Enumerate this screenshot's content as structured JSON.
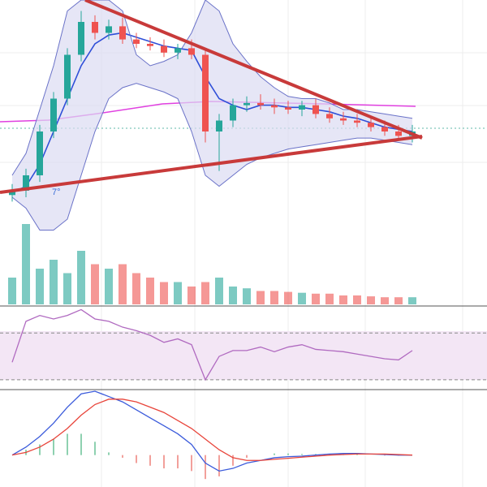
{
  "charts": [
    {
      "type": "candlestick",
      "annotations": [
        "7°"
      ],
      "ylim": [
        0,
        100
      ],
      "up_color": "#26a69a",
      "down_color": "#ef5350",
      "open": [
        11,
        13,
        20,
        40,
        55,
        75,
        90,
        85,
        88,
        82,
        80,
        79,
        76,
        78,
        75,
        40,
        45,
        52,
        53,
        52,
        51,
        50,
        52,
        48,
        46,
        45,
        44,
        42,
        40,
        38
      ],
      "high": [
        16,
        23,
        43,
        58,
        78,
        95,
        93,
        91,
        92,
        85,
        83,
        82,
        80,
        82,
        78,
        48,
        55,
        56,
        57,
        55,
        54,
        54,
        55,
        51,
        49,
        48,
        46,
        45,
        43,
        43
      ],
      "low": [
        8,
        10,
        17,
        37,
        52,
        72,
        82,
        82,
        80,
        78,
        77,
        74,
        73,
        73,
        35,
        22,
        42,
        49,
        50,
        48,
        48,
        47,
        46,
        44,
        43,
        42,
        40,
        38,
        36,
        35
      ],
      "close": [
        13,
        20,
        40,
        55,
        75,
        90,
        85,
        88,
        82,
        80,
        79,
        76,
        78,
        75,
        40,
        45,
        52,
        53,
        52,
        51,
        50,
        52,
        48,
        46,
        45,
        44,
        42,
        40,
        38,
        40
      ],
      "overlays": [
        {
          "color": "#2f4fd8",
          "values": [
            12,
            15,
            25,
            40,
            55,
            70,
            80,
            84,
            85,
            83,
            81,
            79,
            78,
            77,
            65,
            55,
            52,
            50,
            52,
            52,
            51,
            51,
            50,
            49,
            47,
            46,
            44,
            42,
            41,
            40
          ]
        },
        {
          "color": "#6a72c8",
          "values": [
            20,
            30,
            50,
            70,
            95,
            100,
            100,
            100,
            95,
            75,
            70,
            72,
            75,
            85,
            100,
            95,
            80,
            72,
            65,
            60,
            56,
            55,
            55,
            53,
            50,
            50,
            49,
            48,
            47,
            46
          ]
        },
        {
          "color": "#6a72c8",
          "values": [
            10,
            5,
            -5,
            -5,
            0,
            20,
            40,
            55,
            60,
            62,
            60,
            58,
            55,
            40,
            20,
            15,
            20,
            25,
            28,
            30,
            32,
            33,
            34,
            35,
            36,
            37,
            37,
            36,
            35,
            34
          ]
        }
      ]
    },
    {
      "type": "bar",
      "ylim": [
        0,
        100
      ],
      "color": "#8fd0f0",
      "values": [
        30,
        90,
        40,
        50,
        35,
        60,
        45,
        40,
        45,
        35,
        30,
        25,
        25,
        20,
        25,
        30,
        20,
        18,
        15,
        15,
        14,
        13,
        12,
        12,
        10,
        10,
        9,
        8,
        8,
        8
      ]
    },
    {
      "type": "line",
      "ylim": [
        23,
        91
      ],
      "yticks": [
        30,
        70
      ],
      "color": "#b06ac0",
      "values": [
        45,
        80,
        85,
        82,
        85,
        90,
        82,
        80,
        75,
        72,
        68,
        62,
        65,
        60,
        30,
        50,
        55,
        55,
        58,
        54,
        58,
        60,
        56,
        55,
        54,
        52,
        50,
        48,
        47,
        55
      ]
    },
    {
      "type": "macd",
      "ylim": [
        -6,
        12
      ],
      "series": [
        {
          "color": "#3b5bdb",
          "values": [
            0,
            1.5,
            3.5,
            6,
            9,
            11.5,
            12,
            11,
            10,
            8.5,
            7,
            5.5,
            4,
            2,
            -1.5,
            -3,
            -2.5,
            -1.5,
            -1,
            -0.5,
            -0.3,
            -0.2,
            0,
            0.2,
            0.3,
            0.3,
            0.2,
            0.1,
            0,
            0
          ]
        },
        {
          "color": "#e8443a",
          "values": [
            0,
            0.5,
            1.5,
            3,
            5,
            7.5,
            9.5,
            10.5,
            10.5,
            10,
            9,
            8,
            6.5,
            5,
            3,
            1,
            -0.5,
            -1,
            -1,
            -0.8,
            -0.6,
            -0.4,
            -0.2,
            0,
            0.1,
            0.2,
            0.2,
            0.2,
            0.1,
            0
          ]
        }
      ]
    }
  ]
}
